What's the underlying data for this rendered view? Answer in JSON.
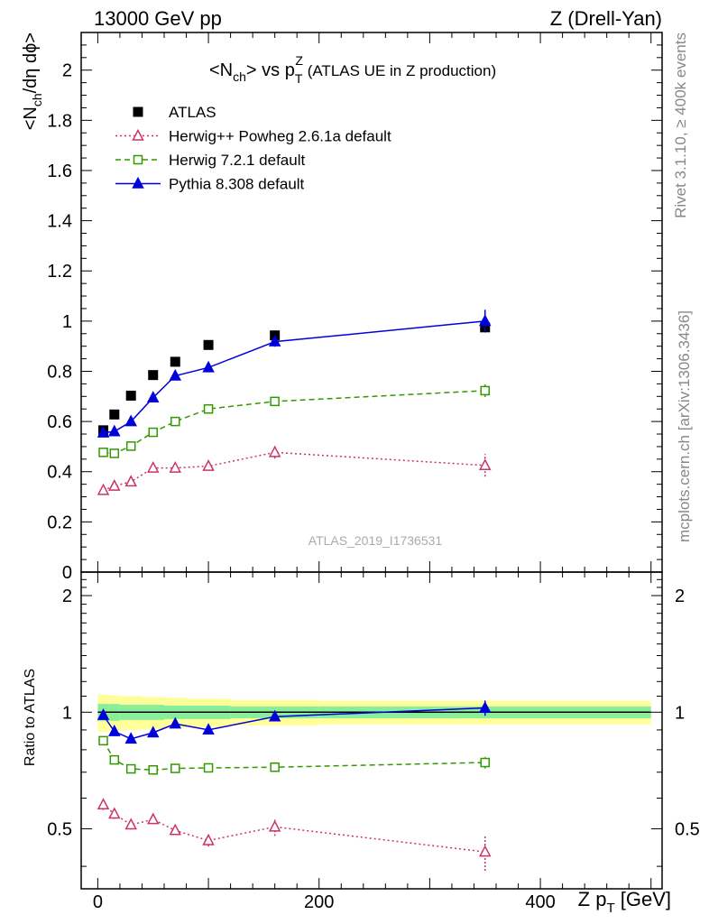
{
  "header": {
    "left": "13000 GeV pp",
    "right": "Z (Drell-Yan)"
  },
  "side_labels": {
    "rivet": "Rivet 3.1.10, ≥ 400k events",
    "mcplots": "mcplots.cern.ch [arXiv:1306.3436]"
  },
  "watermark": "ATLAS_2019_I1736531",
  "chart_data": {
    "type": "scatter",
    "title": {
      "main": "<N",
      "main_sub": "ch",
      "mid": "> vs p",
      "pt_sub": "T",
      "pt_sup": "Z",
      "tail": " (ATLAS UE in Z production)"
    },
    "ylabel": {
      "a": "<N",
      "sub": "ch",
      "b": "/dη dϕ>"
    },
    "xlabel": {
      "a": "Z p",
      "sub": "T",
      "b": " [GeV]"
    },
    "ratio_ylabel": "Ratio to ATLAS",
    "xlim": [
      -15,
      510
    ],
    "ylim": [
      0,
      2.15
    ],
    "ratio_ylim": [
      0.35,
      2.3
    ],
    "x_ticks": [
      0,
      200,
      400
    ],
    "x_tick_labels": [
      "0",
      "200",
      "400"
    ],
    "y_ticks": [
      0,
      0.2,
      0.4,
      0.6,
      0.8,
      1.0,
      1.2,
      1.4,
      1.6,
      1.8,
      2.0
    ],
    "y_tick_labels": [
      "0",
      "0.2",
      "0.4",
      "0.6",
      "0.8",
      "1",
      "1.2",
      "1.4",
      "1.6",
      "1.8",
      "2"
    ],
    "ratio_ticks": [
      0.5,
      1,
      2
    ],
    "ratio_tick_labels": [
      "0.5",
      "1",
      "2"
    ],
    "x": [
      5,
      15,
      30,
      50,
      70,
      100,
      160,
      350
    ],
    "x_err": [
      5,
      5,
      10,
      10,
      10,
      20,
      40,
      150
    ],
    "series": [
      {
        "name": "ATLAS",
        "style": "data",
        "color": "#000000",
        "values": [
          0.565,
          0.628,
          0.703,
          0.785,
          0.838,
          0.905,
          0.943,
          0.975
        ],
        "errors": [
          0.008,
          0.008,
          0.008,
          0.008,
          0.01,
          0.01,
          0.012,
          0.02
        ]
      },
      {
        "name": "Herwig++ Powheg 2.6.1a default",
        "style": "dotted-open-triangle",
        "color": "#cc3366",
        "values": [
          0.326,
          0.343,
          0.36,
          0.415,
          0.415,
          0.422,
          0.477,
          0.425
        ],
        "errors": [
          0.01,
          0.01,
          0.01,
          0.01,
          0.01,
          0.015,
          0.025,
          0.045
        ]
      },
      {
        "name": "Herwig 7.2.1 default",
        "style": "dashed-open-square",
        "color": "#339900",
        "values": [
          0.477,
          0.473,
          0.502,
          0.557,
          0.6,
          0.65,
          0.68,
          0.723
        ],
        "errors": [
          0.008,
          0.008,
          0.008,
          0.008,
          0.008,
          0.01,
          0.012,
          0.025
        ]
      },
      {
        "name": "Pythia 8.308 default",
        "style": "solid-filled-triangle",
        "color": "#0000dd",
        "values": [
          0.555,
          0.56,
          0.6,
          0.695,
          0.782,
          0.815,
          0.918,
          1.0
        ],
        "errors": [
          0.008,
          0.008,
          0.01,
          0.01,
          0.012,
          0.015,
          0.02,
          0.045
        ]
      }
    ],
    "ratio_band": {
      "x_edges": [
        0,
        10,
        20,
        40,
        60,
        80,
        120,
        200,
        500
      ],
      "inner": [
        0.05,
        0.05,
        0.045,
        0.045,
        0.04,
        0.04,
        0.035,
        0.035
      ],
      "outer": [
        0.11,
        0.105,
        0.1,
        0.095,
        0.09,
        0.085,
        0.075,
        0.07
      ],
      "inner_color": "#88ee99",
      "outer_color": "#ffff99"
    },
    "legend": "top-left"
  }
}
